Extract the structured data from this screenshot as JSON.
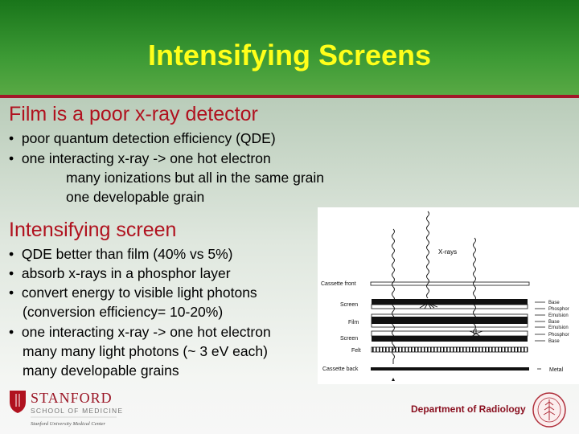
{
  "title": "Intensifying Screens",
  "section1": {
    "heading": "Film is a poor x-ray detector",
    "bullets": [
      "poor quantum detection efficiency (QDE)",
      "one interacting x-ray -> one hot electron"
    ],
    "sub": [
      "many ionizations but all in the same grain",
      "one developable grain"
    ]
  },
  "section2": {
    "heading": "Intensifying screen",
    "bullets": [
      "QDE better than film (40% vs 5%)",
      "absorb x-rays in a phosphor layer",
      "convert energy to visible light photons",
      "one interacting x-ray -> one hot electron"
    ],
    "cont": [
      "(conversion efficiency= 10-20%)",
      "many many light photons (~ 3 eV each)",
      "many developable grains"
    ]
  },
  "bullet_char": "•",
  "diagram": {
    "xrays": "X-rays",
    "left": [
      "Cassette front",
      "Screen",
      "Film",
      "Screen",
      "Felt",
      "Cassette back"
    ],
    "right": [
      "Base",
      "Phosphor",
      "Emulsion",
      "Base",
      "Emulsion",
      "Phosphor",
      "Base",
      "Metal"
    ]
  },
  "footer": {
    "stanford": "STANFORD",
    "school": "SCHOOL OF MEDICINE",
    "center": "Stanford University Medical Center",
    "department": "Department of Radiology"
  },
  "colors": {
    "title": "#ffff1a",
    "heading": "#b0121f",
    "accent_rule": "#a3172a",
    "header_green": "#19751a"
  }
}
